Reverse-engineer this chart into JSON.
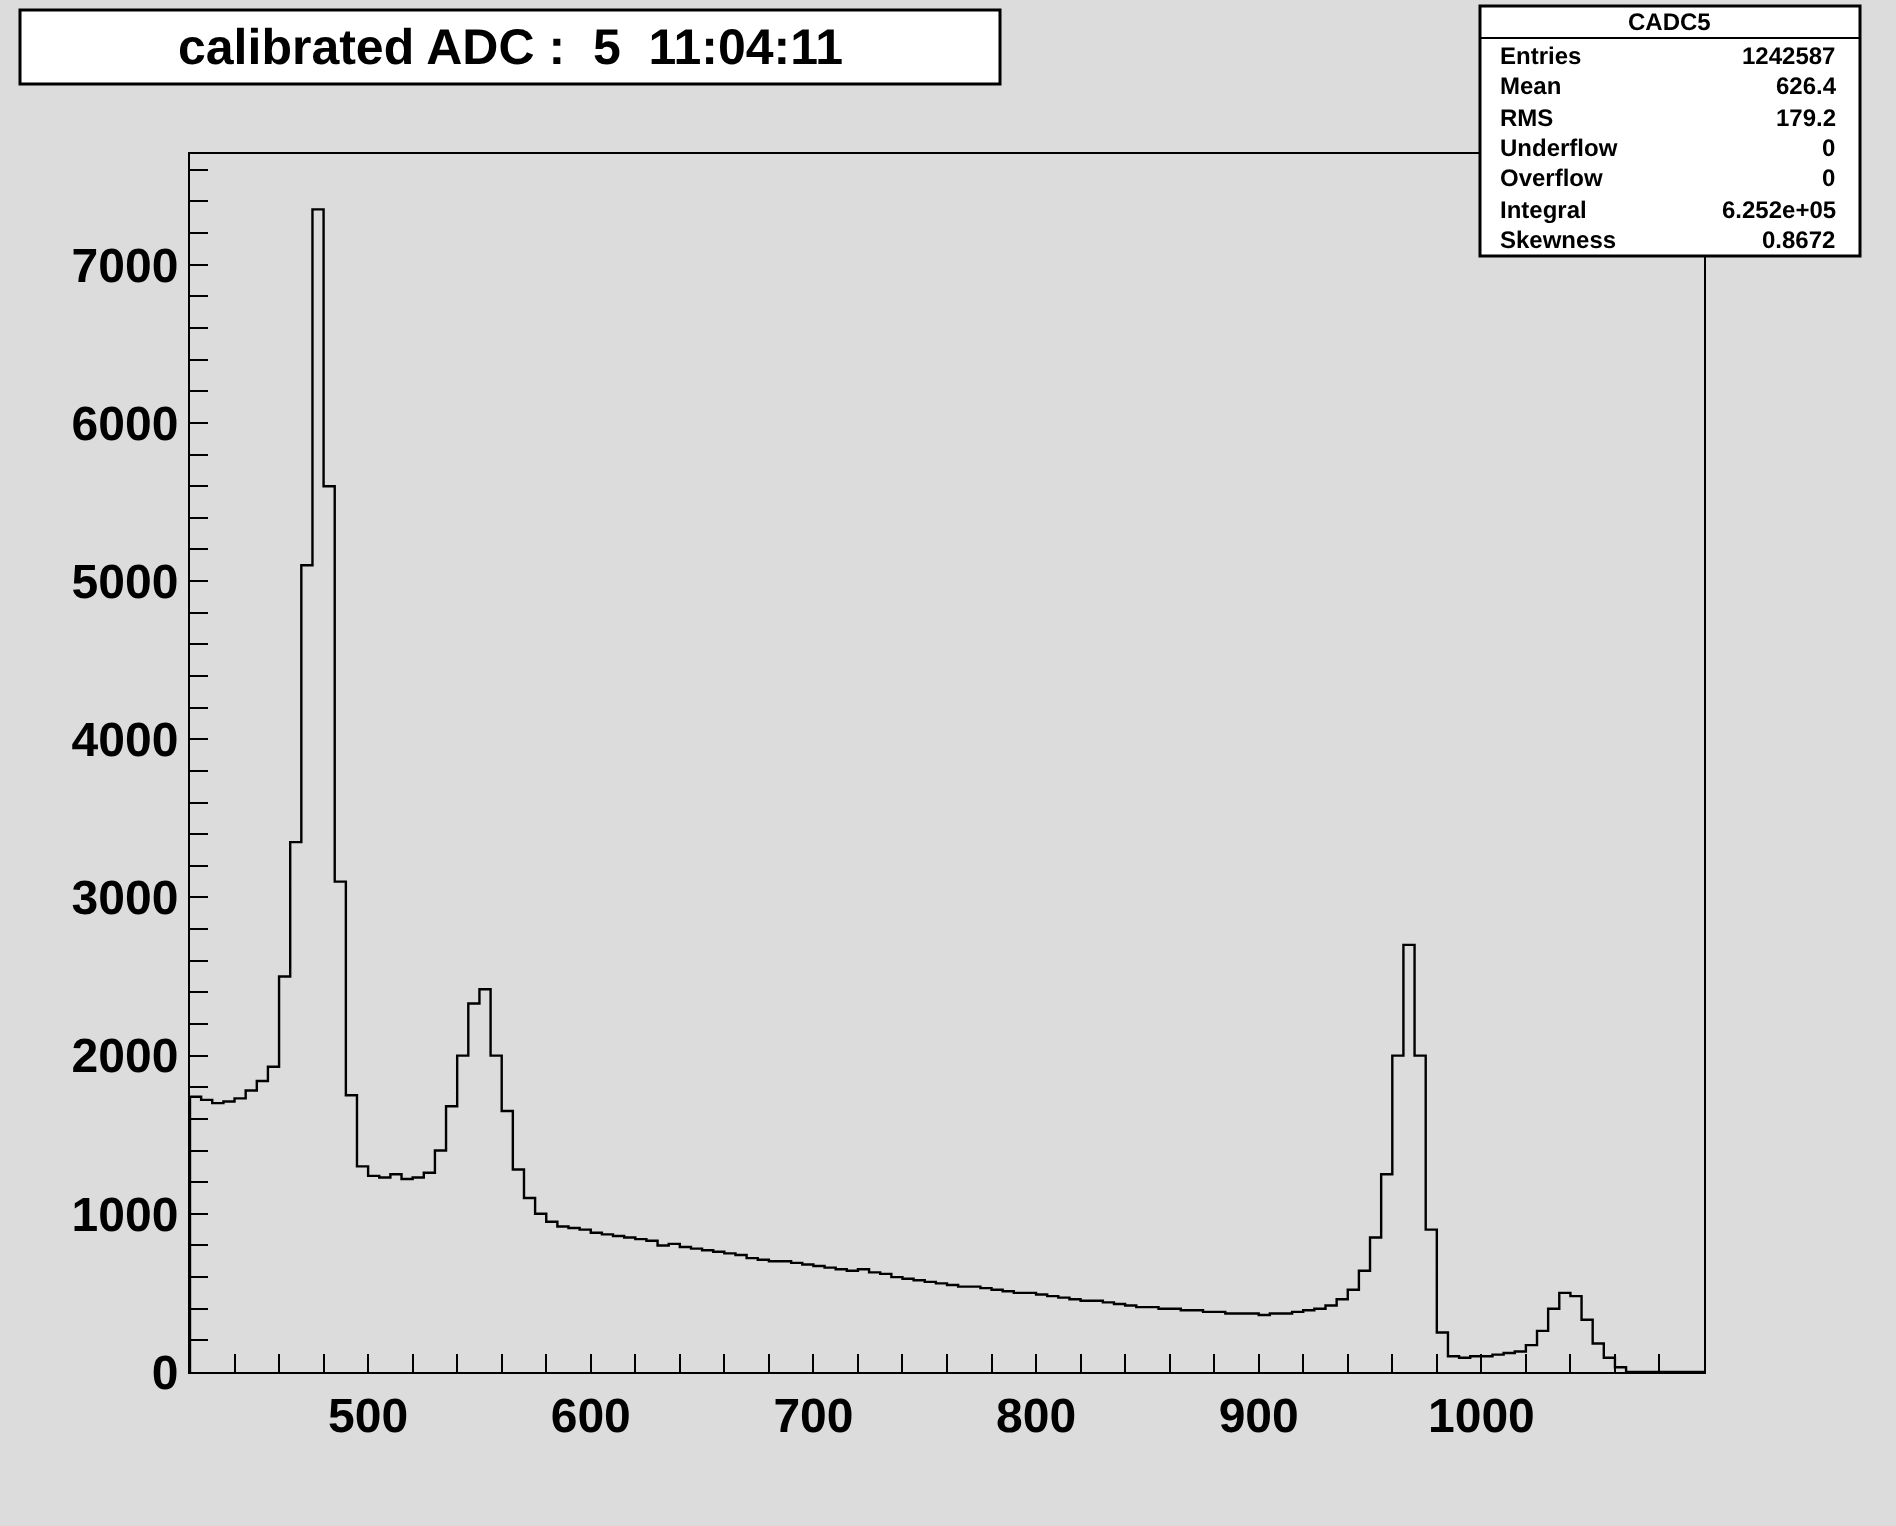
{
  "chart_data": {
    "type": "histogram",
    "title": "calibrated ADC :  5  11:04:11",
    "annotations": [
      "CADC5",
      "Entries",
      "1242587",
      "Mean",
      "626.4",
      "RMS",
      "179.2",
      "Underflow",
      "0",
      "Overflow",
      "0",
      "Integral",
      "6.252e+05",
      "Skewness",
      "0.8672"
    ],
    "color": "#000000",
    "bins": [
      420,
      425,
      430,
      435,
      440,
      445,
      450,
      455,
      460,
      465,
      470,
      475,
      480,
      485,
      490,
      495,
      500,
      505,
      510,
      515,
      520,
      525,
      530,
      535,
      540,
      545,
      550,
      555,
      560,
      565,
      570,
      575,
      580,
      585,
      590,
      595,
      600,
      605,
      610,
      615,
      620,
      625,
      630,
      635,
      640,
      645,
      650,
      655,
      660,
      665,
      670,
      675,
      680,
      685,
      690,
      695,
      700,
      705,
      710,
      715,
      720,
      725,
      730,
      735,
      740,
      745,
      750,
      755,
      760,
      765,
      770,
      775,
      780,
      785,
      790,
      795,
      800,
      805,
      810,
      815,
      820,
      825,
      830,
      835,
      840,
      845,
      850,
      855,
      860,
      865,
      870,
      875,
      880,
      885,
      890,
      895,
      900,
      905,
      910,
      915,
      920,
      925,
      930,
      935,
      940,
      945,
      950,
      955,
      960,
      965,
      970,
      975,
      980,
      985,
      990,
      995,
      1000,
      1005,
      1010,
      1015,
      1020,
      1025,
      1030,
      1035,
      1040,
      1045,
      1050,
      1055,
      1060,
      1065,
      1070,
      1075,
      1080,
      1085,
      1090,
      1095,
      1100
    ],
    "values": [
      1740,
      1720,
      1700,
      1710,
      1730,
      1780,
      1840,
      1930,
      2500,
      3350,
      5100,
      7350,
      5600,
      3100,
      1750,
      1300,
      1240,
      1230,
      1250,
      1220,
      1230,
      1260,
      1400,
      1680,
      2000,
      2330,
      2420,
      2000,
      1650,
      1280,
      1100,
      1000,
      950,
      920,
      910,
      900,
      880,
      870,
      860,
      850,
      840,
      830,
      800,
      810,
      790,
      780,
      770,
      760,
      750,
      740,
      720,
      710,
      700,
      700,
      690,
      680,
      670,
      660,
      650,
      640,
      650,
      630,
      620,
      600,
      590,
      580,
      570,
      560,
      550,
      540,
      540,
      530,
      520,
      510,
      500,
      500,
      490,
      480,
      470,
      460,
      450,
      450,
      440,
      430,
      420,
      410,
      410,
      400,
      400,
      390,
      390,
      380,
      380,
      370,
      370,
      370,
      360,
      370,
      370,
      380,
      390,
      400,
      420,
      460,
      520,
      640,
      850,
      1250,
      2000,
      2700,
      2000,
      900,
      250,
      100,
      90,
      100,
      100,
      110,
      120,
      130,
      170,
      260,
      400,
      500,
      480,
      330,
      180,
      90,
      30,
      0,
      0,
      0,
      0,
      0,
      0,
      0
    ],
    "xlim": [
      420,
      1100
    ],
    "ylim": [
      0,
      7700
    ],
    "xticks": [
      {
        "value": 440,
        "label": null
      },
      {
        "value": 460,
        "label": null
      },
      {
        "value": 480,
        "label": null
      },
      500,
      {
        "value": 520,
        "label": null
      },
      {
        "value": 540,
        "label": null
      },
      {
        "value": 560,
        "label": null
      },
      {
        "value": 580,
        "label": null
      },
      600,
      {
        "value": 620,
        "label": null
      },
      {
        "value": 640,
        "label": null
      },
      {
        "value": 660,
        "label": null
      },
      {
        "value": 680,
        "label": null
      },
      700,
      {
        "value": 720,
        "label": null
      },
      {
        "value": 740,
        "label": null
      },
      {
        "value": 760,
        "label": null
      },
      {
        "value": 780,
        "label": null
      },
      800,
      {
        "value": 820,
        "label": null
      },
      {
        "value": 840,
        "label": null
      },
      {
        "value": 860,
        "label": null
      },
      {
        "value": 880,
        "label": null
      },
      900,
      {
        "value": 920,
        "label": null
      },
      {
        "value": 940,
        "label": null
      },
      {
        "value": 960,
        "label": null
      },
      {
        "value": 980,
        "label": null
      },
      1000,
      {
        "value": 1020,
        "label": null
      },
      {
        "value": 1040,
        "label": null
      },
      {
        "value": 1060,
        "label": null
      },
      {
        "value": 1080,
        "label": null
      }
    ],
    "yticks": [
      0,
      {
        "value": 200,
        "label": null
      },
      {
        "value": 400,
        "label": null
      },
      {
        "value": 600,
        "label": null
      },
      {
        "value": 800,
        "label": null
      },
      1000,
      {
        "value": 1200,
        "label": null
      },
      {
        "value": 1400,
        "label": null
      },
      {
        "value": 1600,
        "label": null
      },
      {
        "value": 1800,
        "label": null
      },
      2000,
      {
        "value": 2200,
        "label": null
      },
      {
        "value": 2400,
        "label": null
      },
      {
        "value": 2600,
        "label": null
      },
      {
        "value": 2800,
        "label": null
      },
      3000,
      {
        "value": 3200,
        "label": null
      },
      {
        "value": 3400,
        "label": null
      },
      {
        "value": 3600,
        "label": null
      },
      {
        "value": 3800,
        "label": null
      },
      4000,
      {
        "value": 4200,
        "label": null
      },
      {
        "value": 4400,
        "label": null
      },
      {
        "value": 4600,
        "label": null
      },
      {
        "value": 4800,
        "label": null
      },
      5000,
      {
        "value": 5200,
        "label": null
      },
      {
        "value": 5400,
        "label": null
      },
      {
        "value": 5600,
        "label": null
      },
      {
        "value": 5800,
        "label": null
      },
      6000,
      {
        "value": 6200,
        "label": null
      },
      {
        "value": 6400,
        "label": null
      },
      {
        "value": 6600,
        "label": null
      },
      {
        "value": 6800,
        "label": null
      },
      7000,
      {
        "value": 7200,
        "label": null
      },
      {
        "value": 7400,
        "label": null
      },
      {
        "value": 7600,
        "label": null
      }
    ],
    "grid": false
  }
}
